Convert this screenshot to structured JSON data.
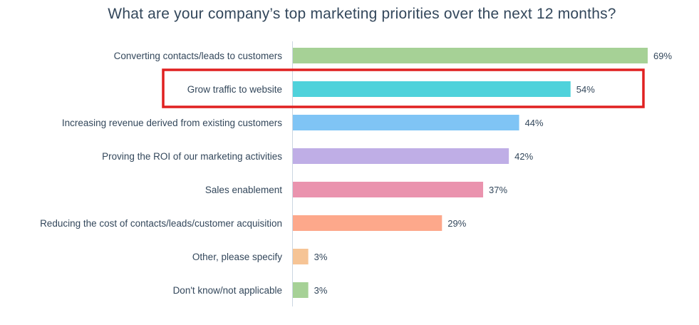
{
  "chart_data": {
    "type": "bar",
    "orientation": "horizontal",
    "title": "What are your company’s top marketing priorities over the next 12 months?",
    "categories": [
      "Converting contacts/leads to customers",
      "Grow traffic to website",
      "Increasing revenue derived from existing customers",
      "Proving the ROI of our marketing activities",
      "Sales enablement",
      "Reducing the cost of contacts/leads/customer acquisition",
      "Other, please specify",
      "Don't know/not applicable"
    ],
    "values": [
      69,
      54,
      44,
      42,
      37,
      29,
      3,
      3
    ],
    "value_labels": [
      "69%",
      "54%",
      "44%",
      "42%",
      "37%",
      "29%",
      "3%",
      "3%"
    ],
    "bar_colors": [
      "#a6d196",
      "#4fd2db",
      "#7fc4f5",
      "#bfaee6",
      "#ea93ae",
      "#fda88b",
      "#f6c495",
      "#a6d196"
    ],
    "highlight": {
      "category": "Grow traffic to website",
      "color": "#e02020"
    },
    "xlim": [
      0,
      69
    ],
    "grid": false,
    "legend": "none"
  }
}
